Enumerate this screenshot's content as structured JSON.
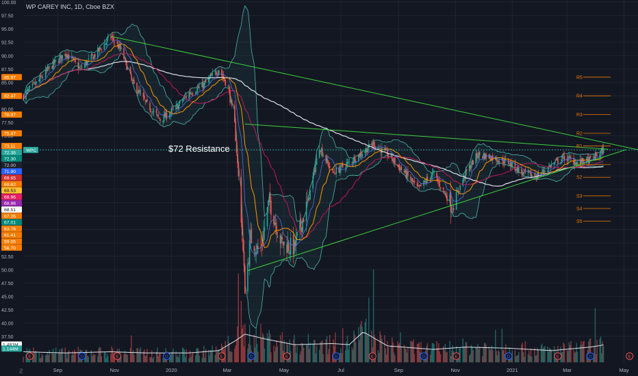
{
  "chart_data": {
    "type": "candlestick",
    "title": "WP CAREY INC, 1D, Cboe BZX",
    "annotation": "$72 Resistance",
    "symbol_tag": "WPC",
    "ylim": [
      36.5,
      100
    ],
    "y_ticks": [
      37.5,
      40.0,
      42.5,
      45.0,
      47.5,
      50.0,
      52.5,
      55.0,
      57.5,
      60.0,
      62.5,
      65.0,
      67.5,
      70.0,
      72.5,
      75.0,
      77.5,
      80.0,
      82.5,
      85.0,
      87.5,
      90.0,
      92.5,
      95.0,
      97.5,
      100.0
    ],
    "y_tick_labels": [
      "37.50",
      "40.00",
      "42.50",
      "45.00",
      "47.50",
      "50.00",
      "52.50",
      "55.00",
      "57.50",
      "60.00",
      "62.50",
      "65.00",
      "67.50",
      "70.00",
      "72.50",
      "75.00",
      "77.50",
      "80.00",
      "82.50",
      "85.00",
      "87.50",
      "90.00",
      "92.50",
      "95.00",
      "97.50",
      "100.00"
    ],
    "x_labels": [
      "Sep",
      "Nov",
      "2020",
      "Mar",
      "May",
      "Jul",
      "Sep",
      "Nov",
      "2021",
      "Mar",
      "May"
    ],
    "x_label_dates": [
      "2019-09-01",
      "2019-11-01",
      "2020-01-01",
      "2020-03-01",
      "2020-05-01",
      "2020-07-01",
      "2020-09-01",
      "2020-11-01",
      "2021-01-01",
      "2021-03-01",
      "2021-05-01"
    ],
    "date_range": [
      "2019-07-26",
      "2021-05-16"
    ],
    "last_date": "2021-04-09",
    "current_price": 72.36,
    "price_labels": [
      {
        "value": 85.97,
        "color": "#f57c00"
      },
      {
        "value": 82.47,
        "color": "#f57c00"
      },
      {
        "value": 78.97,
        "color": "#f57c00"
      },
      {
        "value": 75.47,
        "color": "#f57c00"
      },
      {
        "value": 73.11,
        "color": "#f57c00"
      },
      {
        "value": 72.36,
        "color": "#26a69a"
      },
      {
        "value": 72.3,
        "color": "#00897b"
      },
      {
        "value": 72.0,
        "color": "#1e222d",
        "text_color": "#d1d4dc"
      },
      {
        "value": 71.9,
        "color": "#2962ff"
      },
      {
        "value": 69.65,
        "color": "#d32f2f"
      },
      {
        "value": 69.62,
        "color": "#f57c00"
      },
      {
        "value": 69.53,
        "color": "#fbc02d",
        "text_color": "#131722"
      },
      {
        "value": 68.96,
        "color": "#e91e63"
      },
      {
        "value": 68.86,
        "color": "#9c27b0"
      },
      {
        "value": 68.51,
        "color": "#ffffff",
        "text_color": "#131722"
      },
      {
        "value": 67.26,
        "color": "#f57c00"
      },
      {
        "value": 67.01,
        "color": "#00897b"
      },
      {
        "value": 63.76,
        "color": "#f57c00"
      },
      {
        "value": 61.41,
        "color": "#f57c00"
      },
      {
        "value": 59.05,
        "color": "#f57c00"
      },
      {
        "value": 56.7,
        "color": "#f57c00"
      }
    ],
    "pivots": [
      {
        "label": "R5",
        "value": 85.97
      },
      {
        "label": "R4",
        "value": 82.47
      },
      {
        "label": "R3",
        "value": 78.97
      },
      {
        "label": "R2",
        "value": 75.47
      },
      {
        "label": "R1",
        "value": 73.11
      },
      {
        "label": "S1",
        "value": 69.62
      },
      {
        "label": "S2",
        "value": 67.26
      },
      {
        "label": "S3",
        "value": 63.76
      },
      {
        "label": "S4",
        "value": 61.41
      },
      {
        "label": "S5",
        "value": 59.05
      }
    ],
    "trendlines": [
      {
        "name": "descending resistance",
        "points": [
          [
            "2019-10-28",
            93.6
          ],
          [
            "2021-05-16",
            72.4
          ]
        ]
      },
      {
        "name": "upper wedge line",
        "points": [
          [
            "2020-03-20",
            77.2
          ],
          [
            "2021-04-14",
            72.5
          ]
        ]
      },
      {
        "name": "ascending support",
        "points": [
          [
            "2020-03-23",
            49.8
          ],
          [
            "2021-05-03",
            72.4
          ]
        ]
      }
    ],
    "price_path": [
      [
        "2019-07-26",
        82.5
      ],
      [
        "2019-08-10",
        85.0
      ],
      [
        "2019-08-25",
        88.0
      ],
      [
        "2019-09-10",
        90.5
      ],
      [
        "2019-09-25",
        87.5
      ],
      [
        "2019-10-10",
        90.0
      ],
      [
        "2019-10-28",
        93.5
      ],
      [
        "2019-11-08",
        91.0
      ],
      [
        "2019-11-20",
        85.0
      ],
      [
        "2019-12-05",
        81.0
      ],
      [
        "2019-12-20",
        78.0
      ],
      [
        "2020-01-05",
        80.0
      ],
      [
        "2020-01-20",
        83.0
      ],
      [
        "2020-02-05",
        84.5
      ],
      [
        "2020-02-21",
        87.5
      ],
      [
        "2020-03-02",
        84.0
      ],
      [
        "2020-03-09",
        77.0
      ],
      [
        "2020-03-16",
        60.0
      ],
      [
        "2020-03-20",
        46.0
      ],
      [
        "2020-03-26",
        56.0
      ],
      [
        "2020-04-05",
        53.0
      ],
      [
        "2020-04-15",
        63.0
      ],
      [
        "2020-04-28",
        55.0
      ],
      [
        "2020-05-12",
        54.0
      ],
      [
        "2020-05-27",
        63.0
      ],
      [
        "2020-06-08",
        73.0
      ],
      [
        "2020-06-22",
        68.0
      ],
      [
        "2020-07-10",
        70.0
      ],
      [
        "2020-07-25",
        72.0
      ],
      [
        "2020-08-05",
        73.5
      ],
      [
        "2020-08-20",
        71.5
      ],
      [
        "2020-09-08",
        68.0
      ],
      [
        "2020-09-22",
        65.0
      ],
      [
        "2020-10-08",
        68.0
      ],
      [
        "2020-10-28",
        62.0
      ],
      [
        "2020-11-12",
        68.0
      ],
      [
        "2020-11-25",
        71.5
      ],
      [
        "2020-12-10",
        71.0
      ],
      [
        "2020-12-28",
        70.0
      ],
      [
        "2021-01-12",
        68.0
      ],
      [
        "2021-01-28",
        67.5
      ],
      [
        "2021-02-12",
        69.5
      ],
      [
        "2021-02-26",
        71.0
      ],
      [
        "2021-03-12",
        70.0
      ],
      [
        "2021-03-26",
        70.5
      ],
      [
        "2021-04-09",
        72.36
      ]
    ],
    "volume_labels": [
      "1.481M",
      "1.144M"
    ],
    "volume_path": [
      [
        "2019-07-26",
        0.9
      ],
      [
        "2019-09-10",
        0.8
      ],
      [
        "2019-10-28",
        0.9
      ],
      [
        "2019-12-05",
        0.8
      ],
      [
        "2020-01-20",
        0.8
      ],
      [
        "2020-02-21",
        1.0
      ],
      [
        "2020-03-09",
        1.8
      ],
      [
        "2020-03-20",
        2.4
      ],
      [
        "2020-04-10",
        2.0
      ],
      [
        "2020-05-12",
        1.5
      ],
      [
        "2020-06-22",
        1.6
      ],
      [
        "2020-07-10",
        1.5
      ],
      [
        "2020-07-25",
        2.6
      ],
      [
        "2020-08-20",
        1.4
      ],
      [
        "2020-10-08",
        1.1
      ],
      [
        "2020-11-12",
        1.3
      ],
      [
        "2020-12-28",
        1.2
      ],
      [
        "2021-02-12",
        1.0
      ],
      [
        "2021-03-26",
        1.3
      ],
      [
        "2021-04-09",
        1.481
      ]
    ],
    "event_markers": [
      {
        "date": "2019-08-02",
        "kind": "E"
      },
      {
        "date": "2019-09-27",
        "kind": "D"
      },
      {
        "date": "2019-11-04",
        "kind": "E"
      },
      {
        "date": "2019-12-27",
        "kind": "D"
      },
      {
        "date": "2020-02-24",
        "kind": "E"
      },
      {
        "date": "2020-03-27",
        "kind": "D"
      },
      {
        "date": "2020-05-04",
        "kind": "E"
      },
      {
        "date": "2020-06-26",
        "kind": "D"
      },
      {
        "date": "2020-08-04",
        "kind": "E"
      },
      {
        "date": "2020-09-28",
        "kind": "D"
      },
      {
        "date": "2020-11-02",
        "kind": "E"
      },
      {
        "date": "2020-12-28",
        "kind": "D"
      },
      {
        "date": "2021-02-19",
        "kind": "E"
      },
      {
        "date": "2021-03-26",
        "kind": "D"
      },
      {
        "date": "2021-05-07",
        "kind": "E"
      }
    ]
  },
  "colors": {
    "background": "#131722",
    "grid": "#1f2433",
    "text": "#b2b5be",
    "up": "#26a69a",
    "down": "#ef5350",
    "trend": "#3cd43c",
    "pivot": "#f57c00",
    "sma_long": "#e0e3eb",
    "sma_mid": "#c2185b",
    "sma_short": "#ff9800",
    "bb": "#4db6ac",
    "event_e": "#ef5350",
    "event_d": "#2962ff"
  },
  "icons": {
    "logo": "tradingview-logo-icon"
  }
}
